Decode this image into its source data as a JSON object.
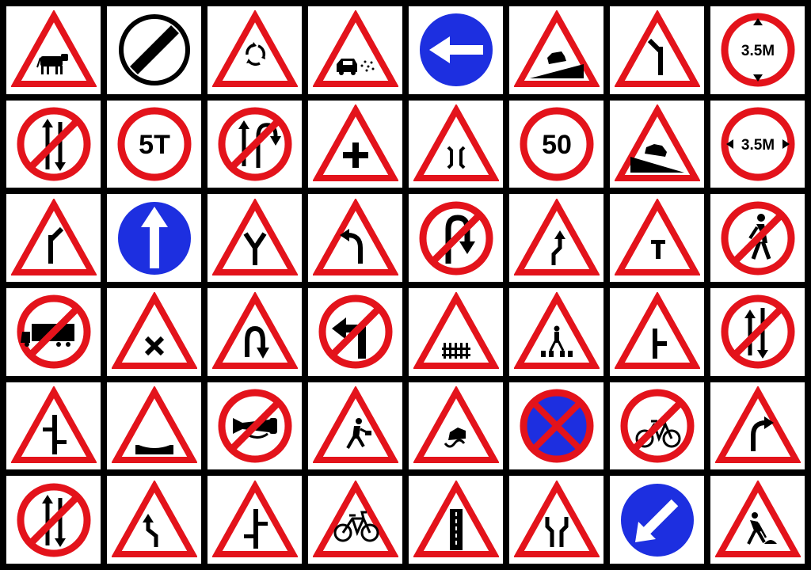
{
  "colors": {
    "red": "#e3131b",
    "blue": "#1d2fe0",
    "black": "#000000",
    "white": "#ffffff"
  },
  "signs": [
    {
      "id": "cattle-warning",
      "shape": "triangle",
      "icon": "cow-icon"
    },
    {
      "id": "end-of-restrictions",
      "shape": "end-circle",
      "icon": "diagonal-bar-icon"
    },
    {
      "id": "roundabout-ahead",
      "shape": "triangle",
      "icon": "roundabout-icon"
    },
    {
      "id": "loose-gravel",
      "shape": "triangle",
      "icon": "car-gravel-icon"
    },
    {
      "id": "compulsory-turn-left",
      "shape": "blue-circle",
      "icon": "arrow-left-icon"
    },
    {
      "id": "steep-descent",
      "shape": "triangle",
      "icon": "car-descent-icon"
    },
    {
      "id": "side-road-left",
      "shape": "triangle",
      "icon": "side-road-left-icon"
    },
    {
      "id": "height-limit",
      "shape": "circle",
      "icon": "height-limit-icon",
      "text": "3.5M"
    },
    {
      "id": "no-two-way-traffic",
      "shape": "prohibition",
      "icon": "two-way-arrows-icon"
    },
    {
      "id": "load-limit",
      "shape": "circle",
      "icon": "text-icon",
      "text": "5T"
    },
    {
      "id": "no-u-turn-overtaking",
      "shape": "prohibition",
      "icon": "u-turn-arrows-icon"
    },
    {
      "id": "crossroads-ahead",
      "shape": "triangle",
      "icon": "plus-icon"
    },
    {
      "id": "narrow-bridge",
      "shape": "triangle",
      "icon": "narrow-bridge-icon"
    },
    {
      "id": "speed-limit",
      "shape": "circle",
      "icon": "text-icon",
      "text": "50"
    },
    {
      "id": "steep-ascent",
      "shape": "triangle",
      "icon": "car-ascent-icon"
    },
    {
      "id": "width-limit",
      "shape": "circle",
      "icon": "width-limit-icon",
      "text": "3.5M"
    },
    {
      "id": "side-road-right",
      "shape": "triangle",
      "icon": "side-road-right-icon"
    },
    {
      "id": "compulsory-ahead",
      "shape": "blue-circle",
      "icon": "arrow-up-icon"
    },
    {
      "id": "y-intersection",
      "shape": "triangle",
      "icon": "y-junction-icon"
    },
    {
      "id": "left-hand-curve",
      "shape": "triangle",
      "icon": "curve-left-icon"
    },
    {
      "id": "no-u-turn",
      "shape": "prohibition",
      "icon": "u-turn-icon"
    },
    {
      "id": "reverse-bend",
      "shape": "triangle",
      "icon": "reverse-bend-icon"
    },
    {
      "id": "t-intersection",
      "shape": "triangle",
      "icon": "t-junction-icon"
    },
    {
      "id": "no-pedestrians",
      "shape": "prohibition",
      "icon": "pedestrian-icon"
    },
    {
      "id": "no-trucks",
      "shape": "prohibition",
      "icon": "truck-icon"
    },
    {
      "id": "crossroads-x",
      "shape": "triangle",
      "icon": "x-icon"
    },
    {
      "id": "hairpin-bend",
      "shape": "triangle",
      "icon": "hairpin-icon"
    },
    {
      "id": "no-left-turn",
      "shape": "prohibition",
      "icon": "left-turn-arrow-icon"
    },
    {
      "id": "guarded-level-crossing",
      "shape": "triangle",
      "icon": "fence-icon"
    },
    {
      "id": "pedestrian-crossing",
      "shape": "triangle",
      "icon": "zebra-crossing-icon"
    },
    {
      "id": "major-road-ahead",
      "shape": "triangle",
      "icon": "side-road-t-icon"
    },
    {
      "id": "no-overtaking-two-way",
      "shape": "prohibition",
      "icon": "two-way-arrows-alt-icon"
    },
    {
      "id": "staggered-intersection",
      "shape": "triangle",
      "icon": "staggered-icon"
    },
    {
      "id": "dip-ahead",
      "shape": "triangle",
      "icon": "dip-icon"
    },
    {
      "id": "horn-prohibited",
      "shape": "prohibition",
      "icon": "horn-icon"
    },
    {
      "id": "school-ahead",
      "shape": "triangle",
      "icon": "child-running-icon"
    },
    {
      "id": "slippery-road",
      "shape": "triangle",
      "icon": "slippery-car-icon"
    },
    {
      "id": "no-stopping",
      "shape": "no-stopping",
      "icon": "cross-icon"
    },
    {
      "id": "no-cycles",
      "shape": "prohibition",
      "icon": "bicycle-icon"
    },
    {
      "id": "right-hand-curve",
      "shape": "triangle",
      "icon": "curve-right-icon"
    },
    {
      "id": "no-overtaking",
      "shape": "prohibition",
      "icon": "two-way-arrows-icon"
    },
    {
      "id": "reverse-bend-2",
      "shape": "triangle",
      "icon": "reverse-bend-alt-icon"
    },
    {
      "id": "staggered-intersection-2",
      "shape": "triangle",
      "icon": "staggered-alt-icon"
    },
    {
      "id": "cycle-crossing",
      "shape": "triangle",
      "icon": "bicycle-icon"
    },
    {
      "id": "narrow-road",
      "shape": "triangle",
      "icon": "narrow-road-icon"
    },
    {
      "id": "road-narrows",
      "shape": "triangle",
      "icon": "road-narrows-icon"
    },
    {
      "id": "keep-left",
      "shape": "blue-circle",
      "icon": "arrow-down-left-icon"
    },
    {
      "id": "men-at-work",
      "shape": "triangle",
      "icon": "worker-icon"
    }
  ]
}
